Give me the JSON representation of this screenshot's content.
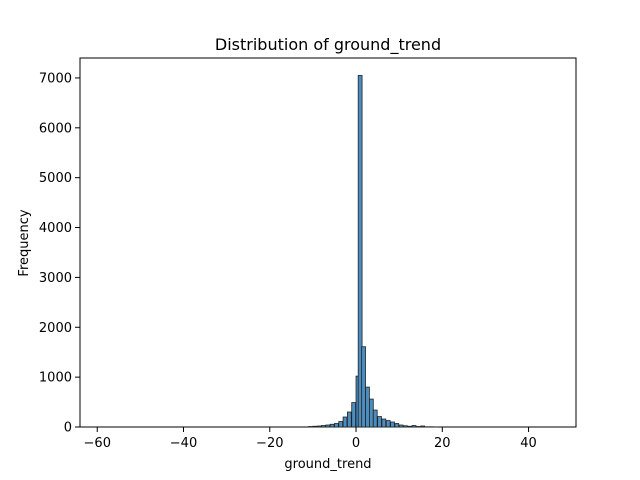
{
  "chart_data": {
    "type": "bar",
    "title": "Distribution of ground_trend",
    "xlabel": "ground_trend",
    "ylabel": "Frequency",
    "xlim": [
      -64,
      51
    ],
    "ylim": [
      0,
      7400
    ],
    "x_ticks": [
      -60,
      -40,
      -20,
      0,
      20,
      40
    ],
    "y_ticks": [
      0,
      1000,
      2000,
      3000,
      4000,
      5000,
      6000,
      7000
    ],
    "grid": false,
    "legend": "none",
    "bar_color": "#4c8dbf",
    "edge_color": "#222222",
    "bin_width": 0.9,
    "bins": [
      {
        "x": -11,
        "value": 10
      },
      {
        "x": -10,
        "value": 15
      },
      {
        "x": -9,
        "value": 20
      },
      {
        "x": -8,
        "value": 30
      },
      {
        "x": -7,
        "value": 40
      },
      {
        "x": -6,
        "value": 55
      },
      {
        "x": -5,
        "value": 70
      },
      {
        "x": -4,
        "value": 110
      },
      {
        "x": -3,
        "value": 200
      },
      {
        "x": -2,
        "value": 300
      },
      {
        "x": -1,
        "value": 490
      },
      {
        "x": 0,
        "value": 1020
      },
      {
        "x": 0.5,
        "value": 7050
      },
      {
        "x": 1.3,
        "value": 1610
      },
      {
        "x": 2.2,
        "value": 800
      },
      {
        "x": 3.1,
        "value": 560
      },
      {
        "x": 4,
        "value": 340
      },
      {
        "x": 5,
        "value": 210
      },
      {
        "x": 6,
        "value": 160
      },
      {
        "x": 7,
        "value": 130
      },
      {
        "x": 8,
        "value": 100
      },
      {
        "x": 9,
        "value": 70
      },
      {
        "x": 10,
        "value": 40
      },
      {
        "x": 11,
        "value": 25
      },
      {
        "x": 12,
        "value": 15
      },
      {
        "x": 13,
        "value": 30
      },
      {
        "x": 14,
        "value": 10
      },
      {
        "x": 15,
        "value": 20
      },
      {
        "x": 16,
        "value": 5
      },
      {
        "x": 17,
        "value": 5
      },
      {
        "x": 18,
        "value": 3
      }
    ]
  }
}
